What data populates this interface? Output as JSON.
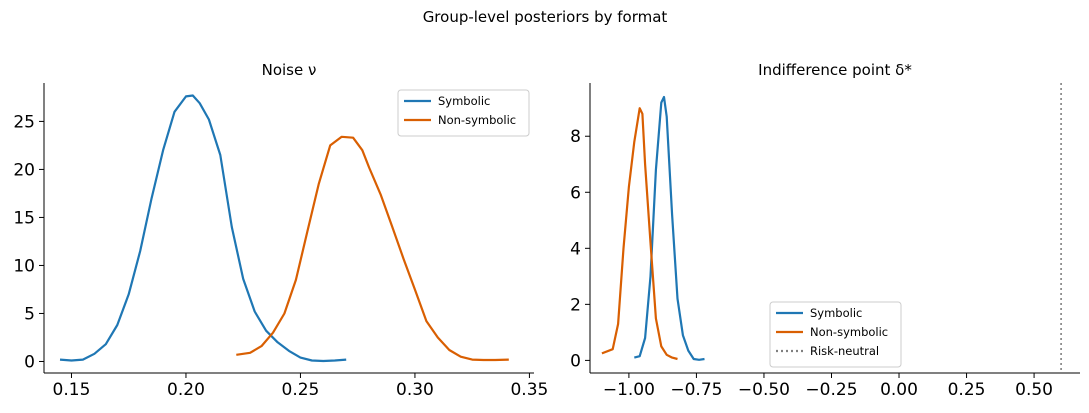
{
  "suptitle": "Group-level posteriors by format",
  "colors": {
    "symbolic": "#1f77b4",
    "nonsymbolic": "#d95f02",
    "riskneutral": "#808080"
  },
  "chart_data": [
    {
      "type": "line",
      "title": "Noise  ν",
      "xlabel": "",
      "ylabel": "",
      "xlim": [
        0.138,
        0.352
      ],
      "ylim": [
        -1.2,
        29.0
      ],
      "xticks": [
        0.15,
        0.2,
        0.25,
        0.3,
        0.35
      ],
      "xtick_labels": [
        "0.15",
        "0.20",
        "0.25",
        "0.30",
        "0.35"
      ],
      "yticks": [
        0,
        5,
        10,
        15,
        20,
        25
      ],
      "ytick_labels": [
        "0",
        "5",
        "10",
        "15",
        "20",
        "25"
      ],
      "legend_position": "top-right",
      "grid": false,
      "series": [
        {
          "name": "Symbolic",
          "color": "#1f77b4",
          "style": "solid",
          "x": [
            0.145,
            0.15,
            0.155,
            0.16,
            0.165,
            0.17,
            0.175,
            0.18,
            0.185,
            0.19,
            0.195,
            0.2,
            0.203,
            0.206,
            0.21,
            0.215,
            0.22,
            0.225,
            0.23,
            0.235,
            0.24,
            0.245,
            0.25,
            0.255,
            0.26,
            0.265,
            0.27
          ],
          "y": [
            0.2,
            0.1,
            0.2,
            0.8,
            1.8,
            3.8,
            7.0,
            11.5,
            17.0,
            22.0,
            26.0,
            27.6,
            27.7,
            26.9,
            25.2,
            21.5,
            14.0,
            8.6,
            5.2,
            3.2,
            2.0,
            1.1,
            0.4,
            0.1,
            0.05,
            0.1,
            0.2
          ]
        },
        {
          "name": "Non-symbolic",
          "color": "#d95f02",
          "style": "solid",
          "x": [
            0.222,
            0.228,
            0.233,
            0.238,
            0.243,
            0.248,
            0.253,
            0.258,
            0.263,
            0.268,
            0.273,
            0.277,
            0.28,
            0.285,
            0.29,
            0.295,
            0.3,
            0.305,
            0.31,
            0.315,
            0.32,
            0.325,
            0.33,
            0.335,
            0.341
          ],
          "y": [
            0.7,
            0.9,
            1.6,
            3.0,
            5.0,
            8.5,
            13.5,
            18.5,
            22.5,
            23.4,
            23.3,
            22.0,
            20.2,
            17.4,
            14.1,
            10.7,
            7.5,
            4.2,
            2.5,
            1.2,
            0.5,
            0.2,
            0.15,
            0.15,
            0.2
          ]
        }
      ]
    },
    {
      "type": "line",
      "title": "Indifference point  δ*",
      "xlabel": "",
      "ylabel": "",
      "xlim": [
        -1.144,
        0.67
      ],
      "ylim": [
        -0.45,
        9.9
      ],
      "xticks": [
        -1.0,
        -0.75,
        -0.5,
        -0.25,
        0.0,
        0.25,
        0.5
      ],
      "xtick_labels": [
        "−1.00",
        "−0.75",
        "−0.50",
        "−0.25",
        "0.00",
        "0.25",
        "0.50"
      ],
      "yticks": [
        0,
        2,
        4,
        6,
        8
      ],
      "ytick_labels": [
        "0",
        "2",
        "4",
        "6",
        "8"
      ],
      "legend_position": "lower-center",
      "grid": false,
      "vline": {
        "x": 0.6,
        "name": "Risk-neutral",
        "color": "#808080",
        "style": "dotted"
      },
      "series": [
        {
          "name": "Symbolic",
          "color": "#1f77b4",
          "style": "solid",
          "x": [
            -0.98,
            -0.96,
            -0.94,
            -0.92,
            -0.9,
            -0.88,
            -0.87,
            -0.86,
            -0.84,
            -0.82,
            -0.8,
            -0.78,
            -0.76,
            -0.74,
            -0.72
          ],
          "y": [
            0.1,
            0.15,
            0.8,
            3.0,
            6.8,
            9.2,
            9.4,
            8.7,
            5.2,
            2.2,
            0.9,
            0.35,
            0.05,
            0.02,
            0.05
          ]
        },
        {
          "name": "Non-symbolic",
          "color": "#d95f02",
          "style": "solid",
          "x": [
            -1.1,
            -1.06,
            -1.04,
            -1.02,
            -1.0,
            -0.98,
            -0.96,
            -0.95,
            -0.94,
            -0.92,
            -0.9,
            -0.88,
            -0.86,
            -0.84,
            -0.82
          ],
          "y": [
            0.25,
            0.4,
            1.3,
            4.0,
            6.2,
            7.8,
            9.0,
            8.8,
            7.0,
            4.2,
            1.5,
            0.5,
            0.2,
            0.1,
            0.05
          ]
        }
      ]
    }
  ]
}
